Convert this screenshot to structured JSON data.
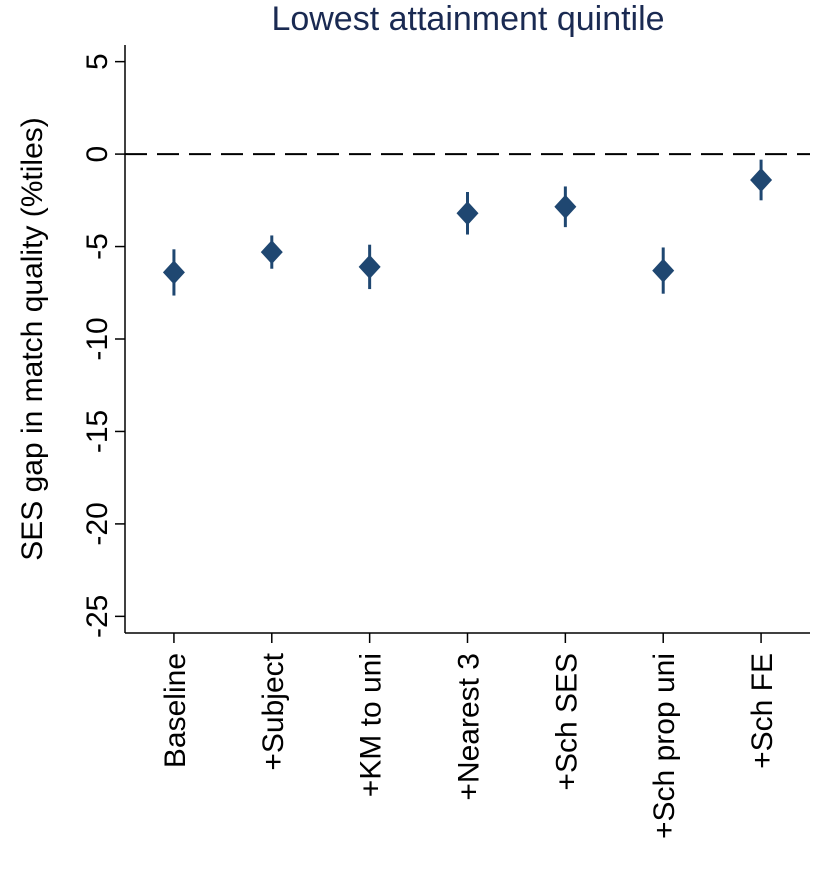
{
  "chart_data": {
    "type": "errorbar",
    "title": "Lowest attainment quintile",
    "y_label": "SES gap in match quality (%tiles)",
    "categories": [
      "Baseline",
      "+Subject",
      "+KM to uni",
      "+Nearest 3",
      "+Sch SES",
      "+Sch prop uni",
      "+Sch FE"
    ],
    "values": [
      -6.4,
      -5.3,
      -6.1,
      -3.2,
      -2.85,
      -6.3,
      -1.4
    ],
    "errors": [
      1.25,
      0.9,
      1.2,
      1.15,
      1.1,
      1.25,
      1.1
    ],
    "color": "#1f4771",
    "ylim": [
      -25.9,
      5.9
    ],
    "yticks": [
      5,
      0,
      -5,
      -10,
      -15,
      -20,
      -25
    ],
    "reference_line": 0
  }
}
